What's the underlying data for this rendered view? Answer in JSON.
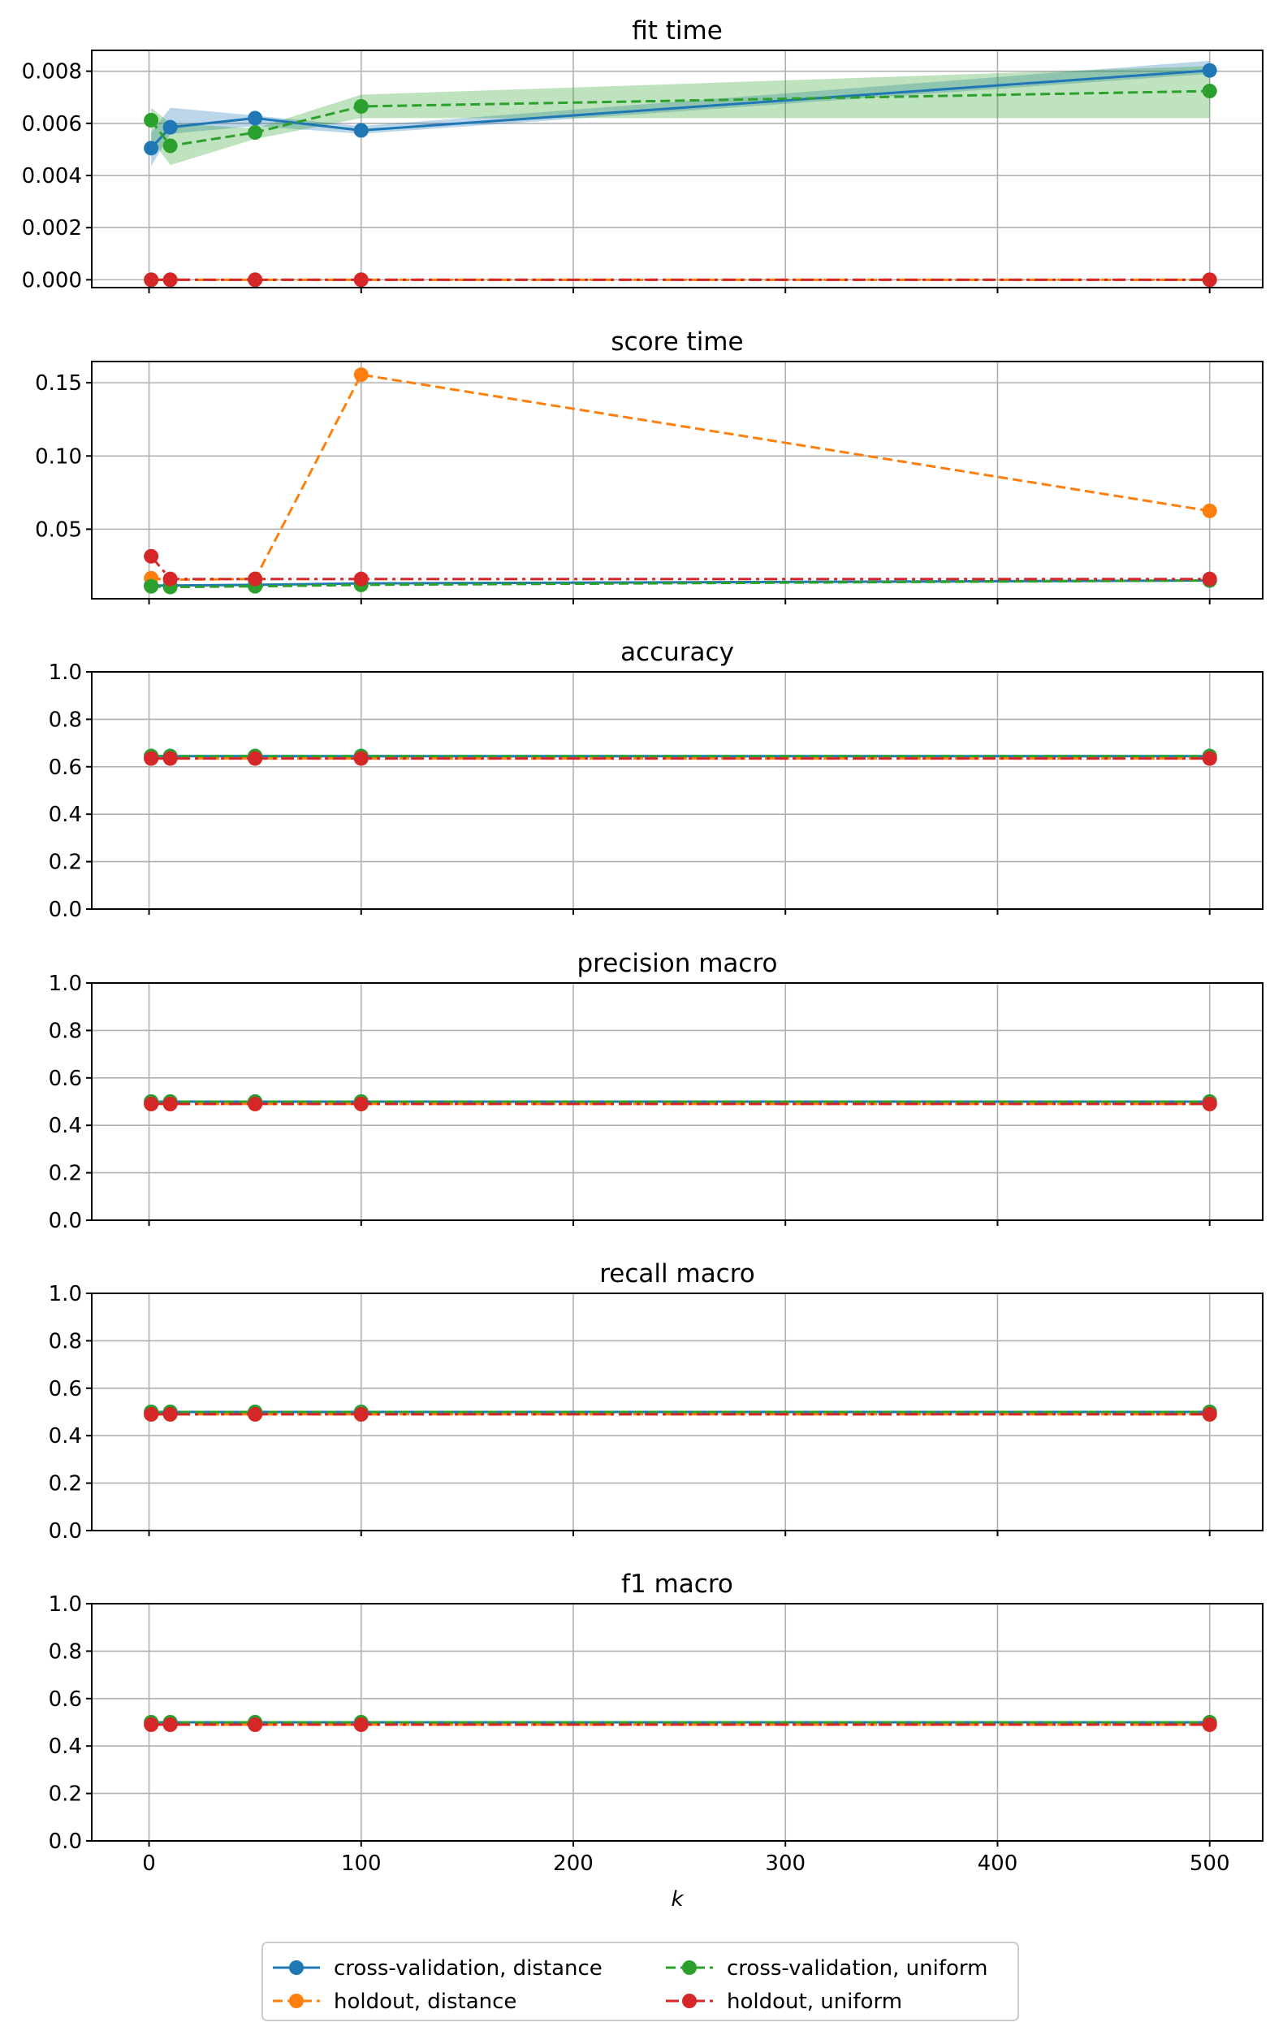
{
  "chart_data": {
    "type": "line",
    "xlabel": "k",
    "xlim": [
      -27,
      525
    ],
    "xticks": [
      0,
      100,
      200,
      300,
      400,
      500
    ],
    "x": [
      1,
      10,
      50,
      100,
      500
    ],
    "grid": true,
    "legend": {
      "placement": "bottom-center, below figure",
      "entries": [
        {
          "series": "cv_distance",
          "label": "cross-validation, distance"
        },
        {
          "series": "cv_uniform",
          "label": "cross-validation, uniform"
        },
        {
          "series": "ho_distance",
          "label": "holdout, distance"
        },
        {
          "series": "ho_uniform",
          "label": "holdout, uniform"
        }
      ]
    },
    "series_styles": {
      "cv_distance": {
        "color": "#1f77b4",
        "dash": "solid"
      },
      "ho_distance": {
        "color": "#ff7f0e",
        "dash": "dashed"
      },
      "cv_uniform": {
        "color": "#2ca02c",
        "dash": "dashed"
      },
      "ho_uniform": {
        "color": "#d62728",
        "dash": "dashdot"
      }
    },
    "panels": [
      {
        "title": "fit time",
        "ylim": [
          -0.0003,
          0.0088
        ],
        "yticks": [
          0.0,
          0.002,
          0.004,
          0.006,
          0.008
        ],
        "ytick_labels": [
          "0.000",
          "0.002",
          "0.004",
          "0.006",
          "0.008"
        ],
        "series": {
          "cv_distance": [
            0.00505,
            0.00585,
            0.0062,
            0.00573,
            0.00803
          ],
          "ho_distance": [
            0.0,
            0.0,
            0.0,
            0.0,
            0.0
          ],
          "cv_uniform": [
            0.00612,
            0.00514,
            0.00565,
            0.00665,
            0.00724
          ],
          "ho_uniform": [
            0.0,
            0.0,
            0.0,
            0.0,
            0.0
          ]
        },
        "bands": {
          "cv_distance": {
            "lower": [
              0.00435,
              0.0056,
              0.0059,
              0.0056,
              0.0079
            ],
            "upper": [
              0.00565,
              0.0066,
              0.0063,
              0.0059,
              0.0084
            ]
          },
          "cv_uniform": {
            "lower": [
              0.0054,
              0.0044,
              0.0054,
              0.0062,
              0.0062
            ],
            "upper": [
              0.0066,
              0.006,
              0.0058,
              0.0071,
              0.0082
            ]
          }
        }
      },
      {
        "title": "score time",
        "ylim": [
          0.0025,
          0.1645
        ],
        "yticks": [
          0.05,
          0.1,
          0.15
        ],
        "ytick_labels": [
          "0.05",
          "0.10",
          "0.15"
        ],
        "series": {
          "cv_distance": [
            0.0115,
            0.0115,
            0.012,
            0.013,
            0.015
          ],
          "ho_distance": [
            0.0165,
            0.0155,
            0.016,
            0.1555,
            0.0625
          ],
          "cv_uniform": [
            0.011,
            0.0105,
            0.011,
            0.012,
            0.015
          ],
          "ho_uniform": [
            0.0315,
            0.016,
            0.016,
            0.016,
            0.016
          ]
        }
      },
      {
        "title": "accuracy",
        "ylim": [
          0.0,
          1.0
        ],
        "yticks": [
          0.0,
          0.2,
          0.4,
          0.6,
          0.8,
          1.0
        ],
        "ytick_labels": [
          "0.0",
          "0.2",
          "0.4",
          "0.6",
          "0.8",
          "1.0"
        ],
        "series": {
          "cv_distance": [
            0.645,
            0.645,
            0.645,
            0.645,
            0.645
          ],
          "ho_distance": [
            0.635,
            0.635,
            0.635,
            0.635,
            0.635
          ],
          "cv_uniform": [
            0.645,
            0.645,
            0.645,
            0.645,
            0.645
          ],
          "ho_uniform": [
            0.635,
            0.635,
            0.635,
            0.635,
            0.635
          ]
        }
      },
      {
        "title": "precision macro",
        "ylim": [
          0.0,
          1.0
        ],
        "yticks": [
          0.0,
          0.2,
          0.4,
          0.6,
          0.8,
          1.0
        ],
        "ytick_labels": [
          "0.0",
          "0.2",
          "0.4",
          "0.6",
          "0.8",
          "1.0"
        ],
        "series": {
          "cv_distance": [
            0.5,
            0.5,
            0.5,
            0.5,
            0.5
          ],
          "ho_distance": [
            0.49,
            0.49,
            0.49,
            0.49,
            0.49
          ],
          "cv_uniform": [
            0.5,
            0.5,
            0.5,
            0.5,
            0.5
          ],
          "ho_uniform": [
            0.49,
            0.49,
            0.49,
            0.49,
            0.49
          ]
        }
      },
      {
        "title": "recall macro",
        "ylim": [
          0.0,
          1.0
        ],
        "yticks": [
          0.0,
          0.2,
          0.4,
          0.6,
          0.8,
          1.0
        ],
        "ytick_labels": [
          "0.0",
          "0.2",
          "0.4",
          "0.6",
          "0.8",
          "1.0"
        ],
        "series": {
          "cv_distance": [
            0.5,
            0.5,
            0.5,
            0.5,
            0.5
          ],
          "ho_distance": [
            0.49,
            0.49,
            0.49,
            0.49,
            0.49
          ],
          "cv_uniform": [
            0.5,
            0.5,
            0.5,
            0.5,
            0.5
          ],
          "ho_uniform": [
            0.49,
            0.49,
            0.49,
            0.49,
            0.49
          ]
        }
      },
      {
        "title": "f1 macro",
        "ylim": [
          0.0,
          1.0
        ],
        "yticks": [
          0.0,
          0.2,
          0.4,
          0.6,
          0.8,
          1.0
        ],
        "ytick_labels": [
          "0.0",
          "0.2",
          "0.4",
          "0.6",
          "0.8",
          "1.0"
        ],
        "series": {
          "cv_distance": [
            0.5,
            0.5,
            0.5,
            0.5,
            0.5
          ],
          "ho_distance": [
            0.49,
            0.49,
            0.49,
            0.49,
            0.49
          ],
          "cv_uniform": [
            0.5,
            0.5,
            0.5,
            0.5,
            0.5
          ],
          "ho_uniform": [
            0.49,
            0.49,
            0.49,
            0.49,
            0.49
          ]
        }
      }
    ]
  }
}
